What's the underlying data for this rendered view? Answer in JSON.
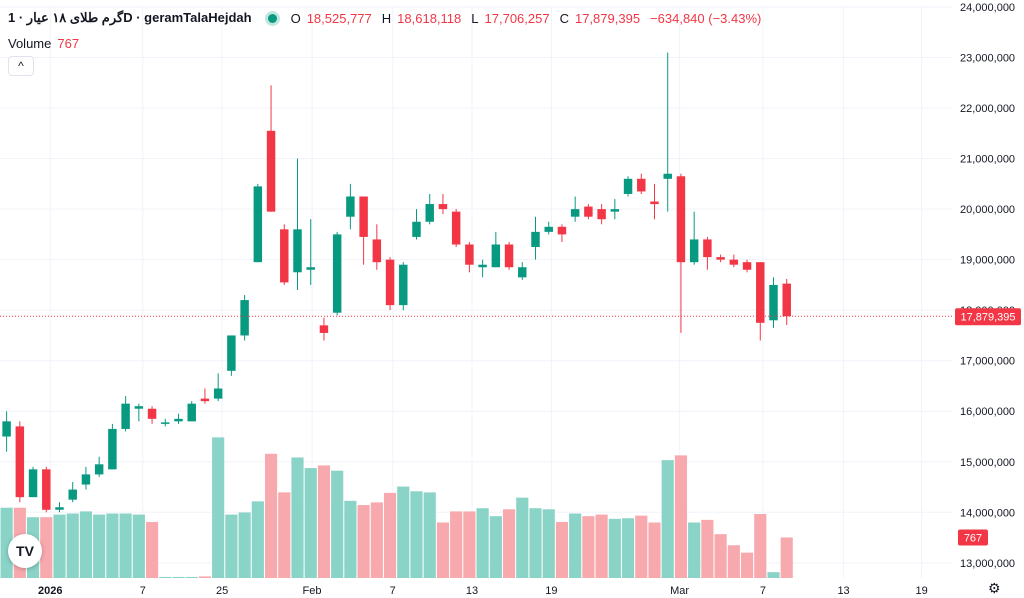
{
  "header": {
    "symbol": "گرم طلای ۱۸ عیار · 1D · geramTalaHejdah",
    "o_label": "O",
    "o_value": "18,525,777",
    "h_label": "H",
    "h_value": "18,618,118",
    "l_label": "L",
    "l_value": "17,706,257",
    "c_label": "C",
    "c_value": "17,879,395",
    "change": "−634,840 (−3.43%)",
    "volume_label": "Volume",
    "volume_value": "767",
    "collapse_glyph": "^"
  },
  "logo_text": "TV",
  "settings_glyph": "⚙",
  "colors": {
    "up": "#089981",
    "down": "#f23645",
    "vol_up": "#8ad3c7",
    "vol_down": "#f7a9ae",
    "grid": "#f0f3fa"
  },
  "chart_data": {
    "type": "candlestick",
    "y_range": [
      12700000,
      24000000
    ],
    "y_ticks": [
      {
        "value": 13000000,
        "label": "13,000,000"
      },
      {
        "value": 14000000,
        "label": "14,000,000"
      },
      {
        "value": 15000000,
        "label": "15,000,000"
      },
      {
        "value": 16000000,
        "label": "16,000,000"
      },
      {
        "value": 17000000,
        "label": "17,000,000"
      },
      {
        "value": 18000000,
        "label": "18,000,000"
      },
      {
        "value": 19000000,
        "label": "19,000,000"
      },
      {
        "value": 20000000,
        "label": "20,000,000"
      },
      {
        "value": 21000000,
        "label": "21,000,000"
      },
      {
        "value": 22000000,
        "label": "22,000,000"
      },
      {
        "value": 23000000,
        "label": "23,000,000"
      },
      {
        "value": 24000000,
        "label": "24,000,000"
      }
    ],
    "x_range": [
      -0.5,
      71.5
    ],
    "x_ticks": [
      {
        "index": 3.3,
        "label": "2026"
      },
      {
        "index": 10.3,
        "label": "7"
      },
      {
        "index": 16.3,
        "label": "25"
      },
      {
        "index": 23.1,
        "label": "Feb"
      },
      {
        "index": 29.2,
        "label": "7"
      },
      {
        "index": 35.2,
        "label": "13"
      },
      {
        "index": 41.2,
        "label": "19"
      },
      {
        "index": 50.9,
        "label": "Mar"
      },
      {
        "index": 57.2,
        "label": "7"
      },
      {
        "index": 63.3,
        "label": "13"
      },
      {
        "index": 69.2,
        "label": "19"
      }
    ],
    "last_price": {
      "value": 17879395,
      "label": "17,879,395"
    },
    "last_volume_label": "767",
    "candles": [
      [
        15500000,
        15800000,
        16000000,
        15200000,
        1330
      ],
      [
        15700000,
        14300000,
        15800000,
        14200000,
        1330
      ],
      [
        14300000,
        14850000,
        14900000,
        14300000,
        1150
      ],
      [
        14850000,
        14050000,
        14900000,
        14000000,
        1150
      ],
      [
        14050000,
        14100000,
        14200000,
        14000000,
        1200
      ],
      [
        14250000,
        14450000,
        14600000,
        14200000,
        1220
      ],
      [
        14550000,
        14750000,
        14900000,
        14450000,
        1260
      ],
      [
        14750000,
        14950000,
        15100000,
        14700000,
        1200
      ],
      [
        14850000,
        15650000,
        15750000,
        14850000,
        1220
      ],
      [
        15650000,
        16150000,
        16300000,
        15600000,
        1220
      ],
      [
        16050000,
        16100000,
        16150000,
        15800000,
        1200
      ],
      [
        16050000,
        15850000,
        16100000,
        15750000,
        1060
      ],
      [
        15750000,
        15780000,
        15850000,
        15700000,
        20
      ],
      [
        15800000,
        15850000,
        15950000,
        15750000,
        20
      ],
      [
        15800000,
        16150000,
        16200000,
        15800000,
        20
      ],
      [
        16250000,
        16200000,
        16450000,
        16150000,
        30
      ],
      [
        16250000,
        16450000,
        16750000,
        16200000,
        2660
      ],
      [
        16800000,
        17500000,
        17500000,
        16700000,
        1200
      ],
      [
        17500000,
        18200000,
        18300000,
        17400000,
        1240
      ],
      [
        18950000,
        20450000,
        20500000,
        18950000,
        1450
      ],
      [
        21550000,
        19950000,
        22450000,
        19950000,
        2350
      ],
      [
        19600000,
        18550000,
        19700000,
        18500000,
        1620
      ],
      [
        18750000,
        19600000,
        21000000,
        18400000,
        2280
      ],
      [
        18800000,
        18850000,
        19800000,
        18500000,
        2080
      ],
      [
        17700000,
        17550000,
        17850000,
        17400000,
        2130
      ],
      [
        17950000,
        19500000,
        19550000,
        17900000,
        2030
      ],
      [
        19850000,
        20250000,
        20500000,
        19600000,
        1460
      ],
      [
        20250000,
        19450000,
        20250000,
        18900000,
        1380
      ],
      [
        19400000,
        18950000,
        19700000,
        18800000,
        1430
      ],
      [
        19000000,
        18100000,
        19050000,
        18000000,
        1610
      ],
      [
        18100000,
        18900000,
        18950000,
        18000000,
        1730
      ],
      [
        19450000,
        19750000,
        20000000,
        19400000,
        1640
      ],
      [
        19750000,
        20100000,
        20300000,
        19700000,
        1620
      ],
      [
        20100000,
        20000000,
        20300000,
        19900000,
        1050
      ],
      [
        19950000,
        19300000,
        20000000,
        19250000,
        1260
      ],
      [
        19300000,
        18900000,
        19350000,
        18750000,
        1260
      ],
      [
        18850000,
        18900000,
        19000000,
        18650000,
        1320
      ],
      [
        18850000,
        19300000,
        19550000,
        18850000,
        1170
      ],
      [
        19300000,
        18850000,
        19350000,
        18800000,
        1300
      ],
      [
        18650000,
        18850000,
        18950000,
        18600000,
        1520
      ],
      [
        19250000,
        19550000,
        19850000,
        19000000,
        1320
      ],
      [
        19550000,
        19650000,
        19750000,
        19500000,
        1300
      ],
      [
        19650000,
        19500000,
        19700000,
        19350000,
        1060
      ],
      [
        19850000,
        20000000,
        20250000,
        19750000,
        1220
      ],
      [
        20050000,
        19850000,
        20100000,
        19800000,
        1170
      ],
      [
        20000000,
        19800000,
        20100000,
        19700000,
        1200
      ],
      [
        19950000,
        20000000,
        20200000,
        19800000,
        1120
      ],
      [
        20300000,
        20600000,
        20650000,
        20250000,
        1130
      ],
      [
        20600000,
        20350000,
        20700000,
        20300000,
        1180
      ],
      [
        20150000,
        20100000,
        20500000,
        19800000,
        1050
      ],
      [
        20600000,
        20700000,
        23100000,
        19950000,
        2230
      ],
      [
        20650000,
        18950000,
        20700000,
        17550000,
        2320
      ],
      [
        18950000,
        19400000,
        19950000,
        18900000,
        1050
      ],
      [
        19400000,
        19050000,
        19450000,
        18800000,
        1100
      ],
      [
        19050000,
        19000000,
        19100000,
        18950000,
        830
      ],
      [
        19000000,
        18900000,
        19100000,
        18850000,
        620
      ],
      [
        18950000,
        18800000,
        19000000,
        18750000,
        480
      ],
      [
        18950000,
        17750000,
        18950000,
        17400000,
        1210
      ],
      [
        17800000,
        18500000,
        18650000,
        17650000,
        110
      ],
      [
        18525777,
        17879395,
        18618118,
        17706257,
        767
      ]
    ]
  }
}
